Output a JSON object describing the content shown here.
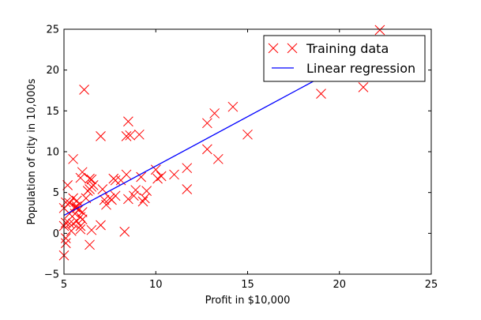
{
  "chart_data": {
    "type": "scatter",
    "xlabel": "Profit in $10,000",
    "ylabel": "Population of city in 10,000s",
    "xlim": [
      5,
      25
    ],
    "ylim": [
      -5,
      25
    ],
    "xticks": [
      5,
      10,
      15,
      20,
      25
    ],
    "yticks": [
      -5,
      0,
      5,
      10,
      15,
      20,
      25
    ],
    "xtick_labels": [
      "5",
      "10",
      "15",
      "20",
      "25"
    ],
    "ytick_labels": [
      "−5",
      "0",
      "5",
      "10",
      "15",
      "20",
      "25"
    ],
    "grid": false,
    "legend_position": "top-right",
    "series": [
      {
        "name": "Training data",
        "kind": "scatter",
        "marker": "x",
        "color": "#ff0000",
        "points": [
          [
            6.1,
            17.6
          ],
          [
            5.5,
            9.1
          ],
          [
            8.5,
            13.7
          ],
          [
            7.0,
            11.9
          ],
          [
            5.9,
            6.8
          ],
          [
            8.4,
            11.9
          ],
          [
            7.5,
            4.3
          ],
          [
            8.6,
            12.0
          ],
          [
            6.5,
            6.6
          ],
          [
            5.1,
            3.8
          ],
          [
            5.7,
            3.3
          ],
          [
            14.2,
            15.5
          ],
          [
            5.7,
            3.1
          ],
          [
            8.4,
            7.2
          ],
          [
            6.4,
            6.7
          ],
          [
            5.4,
            0.3
          ],
          [
            5.3,
            3.7
          ],
          [
            6.4,
            5.4
          ],
          [
            5.6,
            3.2
          ],
          [
            7.1,
            5.4
          ],
          [
            5.0,
            3.1
          ],
          [
            5.5,
            4.3
          ],
          [
            5.7,
            4.0
          ],
          [
            6.2,
            4.3
          ],
          [
            5.1,
            1.3
          ],
          [
            5.9,
            0.9
          ],
          [
            6.0,
            1.7
          ],
          [
            5.3,
            2.4
          ],
          [
            5.5,
            1.2
          ],
          [
            5.9,
            0.5
          ],
          [
            5.0,
            0.9
          ],
          [
            5.2,
            5.9
          ],
          [
            5.6,
            2.4
          ],
          [
            5.1,
            -0.6
          ],
          [
            5.1,
            -1.2
          ],
          [
            5.0,
            -2.7
          ],
          [
            5.3,
            1.2
          ],
          [
            6.4,
            -1.4
          ],
          [
            7.0,
            1.0
          ],
          [
            6.5,
            0.4
          ],
          [
            8.3,
            0.2
          ],
          [
            6.0,
            7.5
          ],
          [
            7.6,
            4.1
          ],
          [
            7.8,
            4.6
          ],
          [
            7.7,
            6.7
          ],
          [
            8.1,
            6.5
          ],
          [
            8.9,
            5.3
          ],
          [
            9.3,
            3.9
          ],
          [
            9.5,
            5.2
          ],
          [
            10.1,
            6.7
          ],
          [
            10.3,
            7.0
          ],
          [
            11.0,
            7.2
          ],
          [
            11.7,
            8.0
          ],
          [
            11.7,
            5.4
          ],
          [
            12.8,
            13.5
          ],
          [
            13.2,
            14.7
          ],
          [
            12.8,
            10.3
          ],
          [
            13.4,
            9.1
          ],
          [
            15.0,
            12.1
          ],
          [
            19.0,
            17.1
          ],
          [
            21.3,
            17.9
          ],
          [
            22.2,
            24.9
          ],
          [
            9.1,
            12.1
          ],
          [
            8.8,
            4.6
          ],
          [
            7.2,
            4.1
          ],
          [
            9.4,
            4.3
          ],
          [
            10.0,
            7.8
          ],
          [
            7.3,
            3.5
          ],
          [
            6.6,
            5.9
          ],
          [
            6.3,
            5.2
          ],
          [
            5.7,
            1.5
          ],
          [
            6.0,
            2.6
          ],
          [
            5.9,
            2.0
          ],
          [
            5.8,
            2.9
          ],
          [
            6.5,
            5.7
          ],
          [
            7.8,
            6.5
          ],
          [
            9.2,
            6.9
          ],
          [
            8.5,
            4.2
          ]
        ]
      },
      {
        "name": "Linear regression",
        "kind": "line",
        "color": "#0000ff",
        "points": [
          [
            5.0,
            2.2
          ],
          [
            22.2,
            23.0
          ]
        ]
      }
    ]
  }
}
